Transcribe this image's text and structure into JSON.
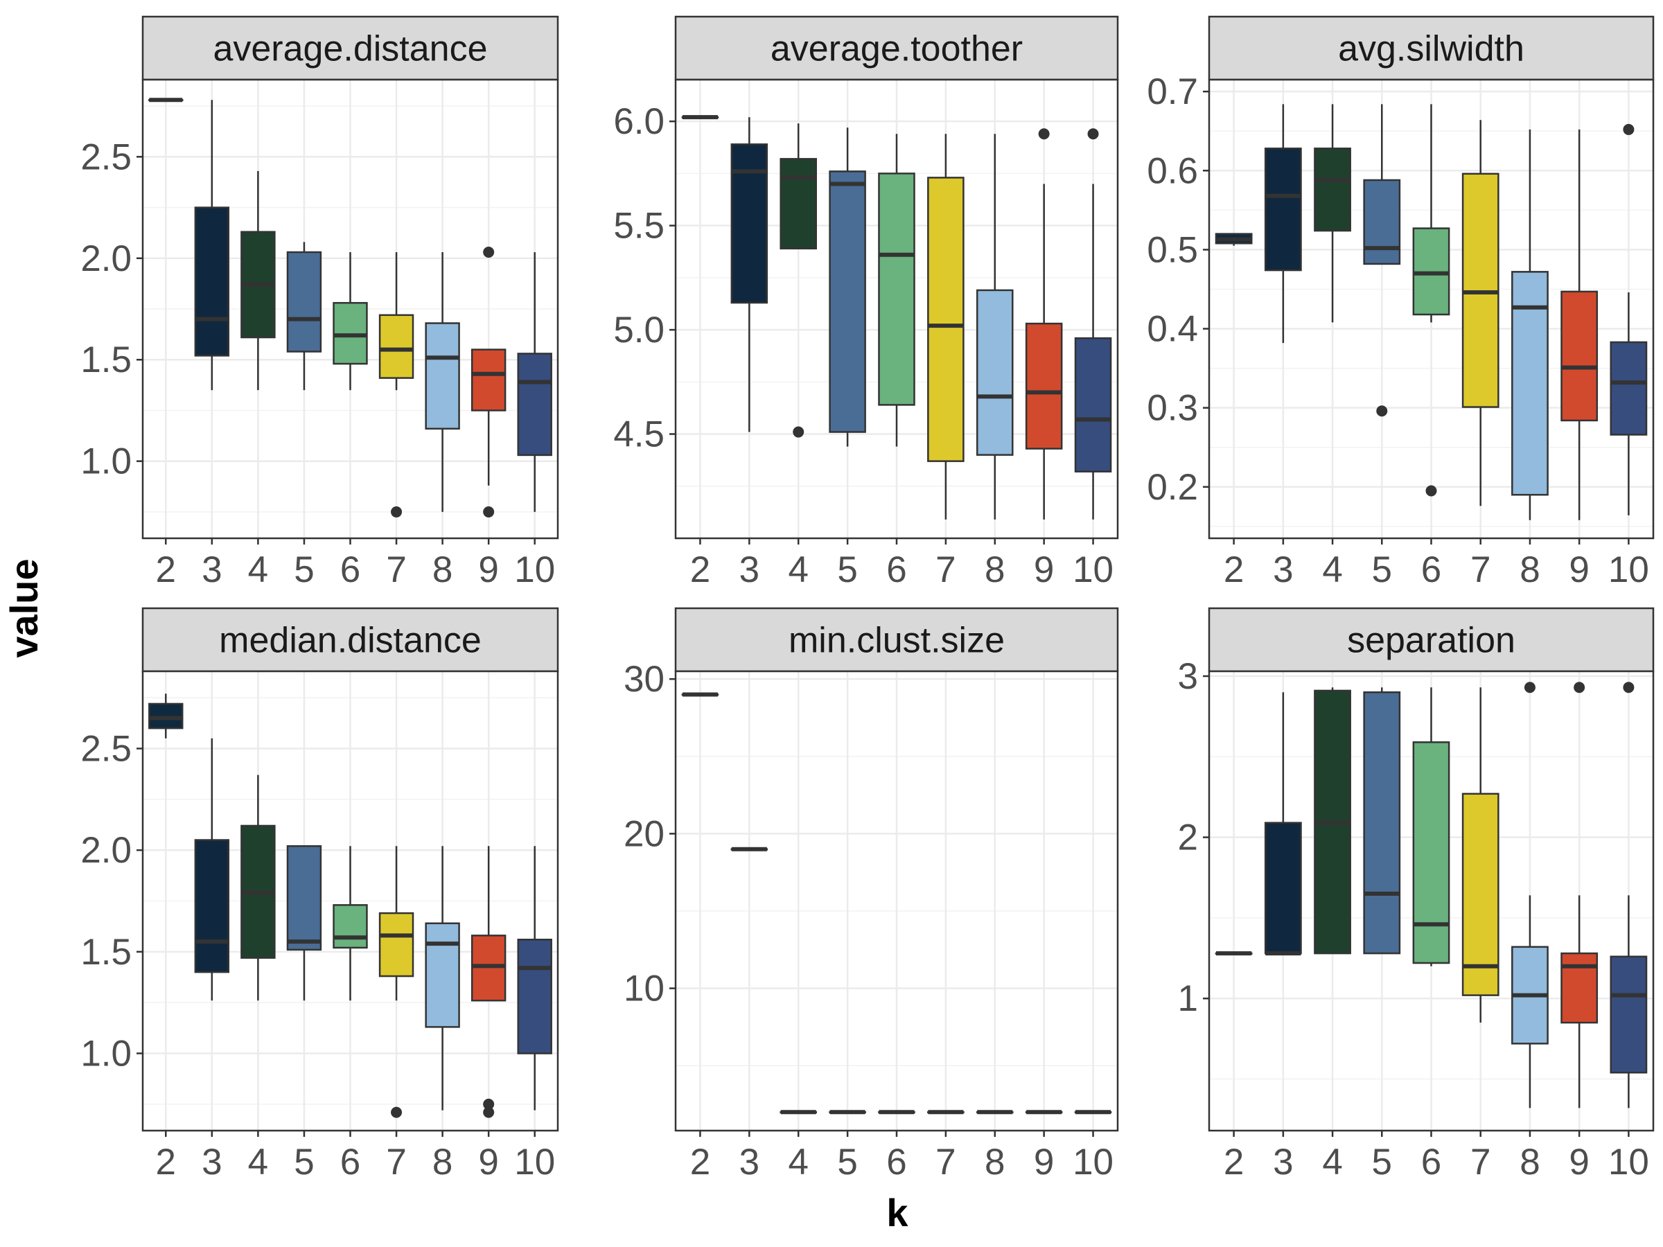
{
  "chart_data": {
    "type": "box",
    "xlabel": "k",
    "ylabel": "value",
    "grid": true,
    "categories": [
      "2",
      "3",
      "4",
      "5",
      "6",
      "7",
      "8",
      "9",
      "10"
    ],
    "colors": [
      "#0f2a3f",
      "#10283f",
      "#20402e",
      "#4a6d96",
      "#6ab27e",
      "#ddc92c",
      "#92bbdd",
      "#d24a2e",
      "#364d7e"
    ],
    "panels": [
      {
        "title": "average.distance",
        "ylim": [
          0.62,
          2.88
        ],
        "yticks": [
          1.0,
          1.5,
          2.0,
          2.5
        ],
        "ytick_labels": [
          "1.0",
          "1.5",
          "2.0",
          "2.5"
        ],
        "boxes": [
          {
            "k": "2",
            "min": 2.78,
            "q1": 2.78,
            "median": 2.78,
            "q3": 2.78,
            "max": 2.78,
            "outliers": []
          },
          {
            "k": "3",
            "min": 1.35,
            "q1": 1.52,
            "median": 1.7,
            "q3": 2.25,
            "max": 2.78,
            "outliers": []
          },
          {
            "k": "4",
            "min": 1.35,
            "q1": 1.61,
            "median": 1.87,
            "q3": 2.13,
            "max": 2.43,
            "outliers": []
          },
          {
            "k": "5",
            "min": 1.35,
            "q1": 1.54,
            "median": 1.7,
            "q3": 2.03,
            "max": 2.08,
            "outliers": []
          },
          {
            "k": "6",
            "min": 1.35,
            "q1": 1.48,
            "median": 1.62,
            "q3": 1.78,
            "max": 2.03,
            "outliers": []
          },
          {
            "k": "7",
            "min": 1.35,
            "q1": 1.41,
            "median": 1.55,
            "q3": 1.72,
            "max": 2.03,
            "outliers": [
              0.75
            ]
          },
          {
            "k": "8",
            "min": 0.75,
            "q1": 1.16,
            "median": 1.51,
            "q3": 1.68,
            "max": 2.03,
            "outliers": []
          },
          {
            "k": "9",
            "min": 0.88,
            "q1": 1.25,
            "median": 1.43,
            "q3": 1.55,
            "max": 1.55,
            "outliers": [
              2.03,
              0.75
            ]
          },
          {
            "k": "10",
            "min": 0.75,
            "q1": 1.03,
            "median": 1.39,
            "q3": 1.53,
            "max": 2.03,
            "outliers": []
          }
        ]
      },
      {
        "title": "average.toother",
        "ylim": [
          4.0,
          6.2
        ],
        "yticks": [
          4.5,
          5.0,
          5.5,
          6.0
        ],
        "ytick_labels": [
          "4.5",
          "5.0",
          "5.5",
          "6.0"
        ],
        "boxes": [
          {
            "k": "2",
            "min": 6.02,
            "q1": 6.02,
            "median": 6.02,
            "q3": 6.02,
            "max": 6.02,
            "outliers": []
          },
          {
            "k": "3",
            "min": 4.51,
            "q1": 5.13,
            "median": 5.76,
            "q3": 5.89,
            "max": 6.02,
            "outliers": []
          },
          {
            "k": "4",
            "min": 5.39,
            "q1": 5.39,
            "median": 5.73,
            "q3": 5.82,
            "max": 5.99,
            "outliers": [
              4.51
            ]
          },
          {
            "k": "5",
            "min": 4.44,
            "q1": 4.51,
            "median": 5.7,
            "q3": 5.76,
            "max": 5.97,
            "outliers": []
          },
          {
            "k": "6",
            "min": 4.44,
            "q1": 4.64,
            "median": 5.36,
            "q3": 5.75,
            "max": 5.94,
            "outliers": []
          },
          {
            "k": "7",
            "min": 4.09,
            "q1": 4.37,
            "median": 5.02,
            "q3": 5.73,
            "max": 5.94,
            "outliers": []
          },
          {
            "k": "8",
            "min": 4.09,
            "q1": 4.4,
            "median": 4.68,
            "q3": 5.19,
            "max": 5.94,
            "outliers": []
          },
          {
            "k": "9",
            "min": 4.09,
            "q1": 4.43,
            "median": 4.7,
            "q3": 5.03,
            "max": 5.7,
            "outliers": [
              5.94
            ]
          },
          {
            "k": "10",
            "min": 4.09,
            "q1": 4.32,
            "median": 4.57,
            "q3": 4.96,
            "max": 5.7,
            "outliers": [
              5.94
            ]
          }
        ]
      },
      {
        "title": "avg.silwidth",
        "ylim": [
          0.135,
          0.715
        ],
        "yticks": [
          0.2,
          0.3,
          0.4,
          0.5,
          0.6,
          0.7
        ],
        "ytick_labels": [
          "0.2",
          "0.3",
          "0.4",
          "0.5",
          "0.6",
          "0.7"
        ],
        "boxes": [
          {
            "k": "2",
            "min": 0.505,
            "q1": 0.508,
            "median": 0.513,
            "q3": 0.52,
            "max": 0.52,
            "outliers": []
          },
          {
            "k": "3",
            "min": 0.382,
            "q1": 0.474,
            "median": 0.568,
            "q3": 0.628,
            "max": 0.684,
            "outliers": []
          },
          {
            "k": "4",
            "min": 0.408,
            "q1": 0.524,
            "median": 0.588,
            "q3": 0.628,
            "max": 0.684,
            "outliers": []
          },
          {
            "k": "5",
            "min": 0.482,
            "q1": 0.482,
            "median": 0.502,
            "q3": 0.588,
            "max": 0.684,
            "outliers": [
              0.296
            ]
          },
          {
            "k": "6",
            "min": 0.408,
            "q1": 0.418,
            "median": 0.47,
            "q3": 0.527,
            "max": 0.684,
            "outliers": [
              0.195
            ]
          },
          {
            "k": "7",
            "min": 0.176,
            "q1": 0.301,
            "median": 0.446,
            "q3": 0.596,
            "max": 0.664,
            "outliers": []
          },
          {
            "k": "8",
            "min": 0.158,
            "q1": 0.19,
            "median": 0.427,
            "q3": 0.472,
            "max": 0.652,
            "outliers": []
          },
          {
            "k": "9",
            "min": 0.158,
            "q1": 0.284,
            "median": 0.351,
            "q3": 0.447,
            "max": 0.652,
            "outliers": []
          },
          {
            "k": "10",
            "min": 0.164,
            "q1": 0.266,
            "median": 0.332,
            "q3": 0.383,
            "max": 0.446,
            "outliers": [
              0.652
            ]
          }
        ]
      },
      {
        "title": "median.distance",
        "ylim": [
          0.62,
          2.88
        ],
        "yticks": [
          1.0,
          1.5,
          2.0,
          2.5
        ],
        "ytick_labels": [
          "1.0",
          "1.5",
          "2.0",
          "2.5"
        ],
        "boxes": [
          {
            "k": "2",
            "min": 2.55,
            "q1": 2.6,
            "median": 2.65,
            "q3": 2.72,
            "max": 2.77,
            "outliers": []
          },
          {
            "k": "3",
            "min": 1.26,
            "q1": 1.4,
            "median": 1.55,
            "q3": 2.05,
            "max": 2.55,
            "outliers": []
          },
          {
            "k": "4",
            "min": 1.26,
            "q1": 1.47,
            "median": 1.79,
            "q3": 2.12,
            "max": 2.37,
            "outliers": []
          },
          {
            "k": "5",
            "min": 1.26,
            "q1": 1.51,
            "median": 1.55,
            "q3": 2.02,
            "max": 2.02,
            "outliers": []
          },
          {
            "k": "6",
            "min": 1.26,
            "q1": 1.52,
            "median": 1.57,
            "q3": 1.73,
            "max": 2.02,
            "outliers": []
          },
          {
            "k": "7",
            "min": 1.26,
            "q1": 1.38,
            "median": 1.58,
            "q3": 1.69,
            "max": 2.02,
            "outliers": [
              0.71
            ]
          },
          {
            "k": "8",
            "min": 0.72,
            "q1": 1.13,
            "median": 1.54,
            "q3": 1.64,
            "max": 2.02,
            "outliers": []
          },
          {
            "k": "9",
            "min": 1.26,
            "q1": 1.26,
            "median": 1.43,
            "q3": 1.58,
            "max": 2.02,
            "outliers": [
              0.75,
              0.71
            ]
          },
          {
            "k": "10",
            "min": 0.72,
            "q1": 1.0,
            "median": 1.42,
            "q3": 1.56,
            "max": 2.02,
            "outliers": []
          }
        ]
      },
      {
        "title": "min.clust.size",
        "ylim": [
          0.8,
          30.5
        ],
        "yticks": [
          10,
          20,
          30
        ],
        "ytick_labels": [
          "10",
          "20",
          "30"
        ],
        "boxes": [
          {
            "k": "2",
            "min": 29,
            "q1": 29,
            "median": 29,
            "q3": 29,
            "max": 29,
            "outliers": []
          },
          {
            "k": "3",
            "min": 19,
            "q1": 19,
            "median": 19,
            "q3": 19,
            "max": 19,
            "outliers": []
          },
          {
            "k": "4",
            "min": 2,
            "q1": 2,
            "median": 2,
            "q3": 2,
            "max": 2,
            "outliers": []
          },
          {
            "k": "5",
            "min": 2,
            "q1": 2,
            "median": 2,
            "q3": 2,
            "max": 2,
            "outliers": []
          },
          {
            "k": "6",
            "min": 2,
            "q1": 2,
            "median": 2,
            "q3": 2,
            "max": 2,
            "outliers": []
          },
          {
            "k": "7",
            "min": 2,
            "q1": 2,
            "median": 2,
            "q3": 2,
            "max": 2,
            "outliers": []
          },
          {
            "k": "8",
            "min": 2,
            "q1": 2,
            "median": 2,
            "q3": 2,
            "max": 2,
            "outliers": []
          },
          {
            "k": "9",
            "min": 2,
            "q1": 2,
            "median": 2,
            "q3": 2,
            "max": 2,
            "outliers": []
          },
          {
            "k": "10",
            "min": 2,
            "q1": 2,
            "median": 2,
            "q3": 2,
            "max": 2,
            "outliers": []
          }
        ]
      },
      {
        "title": "separation",
        "ylim": [
          0.18,
          3.03
        ],
        "yticks": [
          1,
          2,
          3
        ],
        "ytick_labels": [
          "1",
          "2",
          "3"
        ],
        "boxes": [
          {
            "k": "2",
            "min": 1.28,
            "q1": 1.28,
            "median": 1.28,
            "q3": 1.28,
            "max": 1.28,
            "outliers": []
          },
          {
            "k": "3",
            "min": 1.28,
            "q1": 1.28,
            "median": 1.28,
            "q3": 2.09,
            "max": 2.9,
            "outliers": []
          },
          {
            "k": "4",
            "min": 1.28,
            "q1": 1.28,
            "median": 2.09,
            "q3": 2.91,
            "max": 2.93,
            "outliers": []
          },
          {
            "k": "5",
            "min": 1.28,
            "q1": 1.28,
            "median": 1.65,
            "q3": 2.9,
            "max": 2.93,
            "outliers": []
          },
          {
            "k": "6",
            "min": 1.2,
            "q1": 1.22,
            "median": 1.46,
            "q3": 2.59,
            "max": 2.93,
            "outliers": []
          },
          {
            "k": "7",
            "min": 0.85,
            "q1": 1.02,
            "median": 1.2,
            "q3": 2.27,
            "max": 2.93,
            "outliers": []
          },
          {
            "k": "8",
            "min": 0.32,
            "q1": 0.72,
            "median": 1.02,
            "q3": 1.32,
            "max": 1.64,
            "outliers": [
              2.93
            ]
          },
          {
            "k": "9",
            "min": 0.32,
            "q1": 0.85,
            "median": 1.2,
            "q3": 1.28,
            "max": 1.64,
            "outliers": [
              2.93
            ]
          },
          {
            "k": "10",
            "min": 0.32,
            "q1": 0.54,
            "median": 1.02,
            "q3": 1.26,
            "max": 1.64,
            "outliers": [
              2.93
            ]
          }
        ]
      }
    ]
  }
}
